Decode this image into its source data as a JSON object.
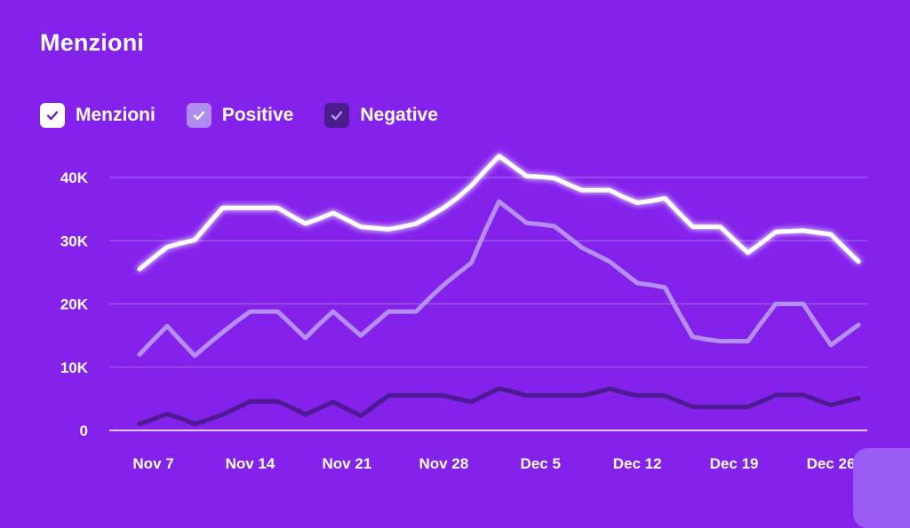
{
  "title": "Menzioni",
  "legend": [
    {
      "label": "Menzioni",
      "box_color": "#ffffff",
      "check_color": "#6a20c9"
    },
    {
      "label": "Positive",
      "box_color": "#b18cf0",
      "check_color": "#ffffff"
    },
    {
      "label": "Negative",
      "box_color": "#4a1c8e",
      "check_color": "#b79ce8"
    }
  ],
  "colors": {
    "background": "#8422ec",
    "menzioni": "#ffffff",
    "positive": "#b58ff2",
    "negative": "#4d1a91",
    "gridline": "#a46cf2"
  },
  "chart_data": {
    "type": "line",
    "xlabel": "",
    "ylabel": "",
    "ylim": [
      0,
      40000
    ],
    "y_ticks": [
      0,
      10000,
      20000,
      30000,
      40000
    ],
    "y_tick_labels": [
      "0",
      "10K",
      "20K",
      "30K",
      "40K"
    ],
    "x_tick_labels": [
      "Nov 7",
      "Nov 14",
      "Nov 21",
      "Nov 28",
      "Dec 5",
      "Dec 12",
      "Dec 19",
      "Dec 26"
    ],
    "grid": true,
    "legend_position": "top-left",
    "x": [
      "Nov 6",
      "Nov 7",
      "Nov 8",
      "Nov 9",
      "Nov 10",
      "Nov 11",
      "Nov 12",
      "Nov 13",
      "Nov 14",
      "Nov 15",
      "Nov 16",
      "Nov 17",
      "Nov 18",
      "Nov 19",
      "Nov 20",
      "Nov 21",
      "Nov 22",
      "Nov 23",
      "Nov 24",
      "Nov 25",
      "Nov 26",
      "Nov 27",
      "Nov 28",
      "Nov 29",
      "Nov 30",
      "Dec 1",
      "Dec 2",
      "Dec 3",
      "Dec 4",
      "Dec 5",
      "Dec 6",
      "Dec 7",
      "Dec 8",
      "Dec 9",
      "Dec 10",
      "Dec 11",
      "Dec 12",
      "Dec 13",
      "Dec 14",
      "Dec 15",
      "Dec 16",
      "Dec 17",
      "Dec 18",
      "Dec 19",
      "Dec 20",
      "Dec 21",
      "Dec 22",
      "Dec 23",
      "Dec 24",
      "Dec 25",
      "Dec 26",
      "Dec 27",
      "Dec 28"
    ],
    "series": [
      {
        "name": "Menzioni",
        "values": [
          25500,
          27300,
          29000,
          29600,
          30100,
          32700,
          35200,
          35200,
          35200,
          35200,
          35200,
          33900,
          32700,
          33500,
          34400,
          33300,
          32200,
          32000,
          31800,
          32200,
          32700,
          33900,
          35200,
          36800,
          38700,
          41100,
          43400,
          41800,
          40200,
          40100,
          39900,
          38900,
          38000,
          38000,
          38000,
          36900,
          36000,
          36300,
          36700,
          34400,
          32200,
          32200,
          32200,
          30100,
          28100,
          29700,
          31400,
          31500,
          31600,
          31300,
          31000,
          28800,
          26700
        ]
      },
      {
        "name": "Positive",
        "values": [
          12000,
          14300,
          16500,
          14100,
          11800,
          13700,
          15500,
          17200,
          18800,
          18800,
          18800,
          16700,
          14600,
          16800,
          18800,
          16900,
          15000,
          16900,
          18800,
          18800,
          18800,
          21000,
          23000,
          24800,
          26500,
          31600,
          36200,
          34500,
          32800,
          32600,
          32300,
          30600,
          28900,
          27800,
          26700,
          25000,
          23300,
          23000,
          22600,
          18600,
          14800,
          14400,
          14100,
          14100,
          14100,
          17100,
          20000,
          20000,
          20000,
          16700,
          13500,
          15100,
          16700
        ]
      },
      {
        "name": "Negative",
        "values": [
          1000,
          1800,
          2600,
          1900,
          1000,
          1700,
          2500,
          3500,
          4600,
          4600,
          4600,
          3600,
          2500,
          3500,
          4500,
          3400,
          2300,
          3900,
          5500,
          5500,
          5500,
          5500,
          5500,
          5000,
          4500,
          5600,
          6600,
          6100,
          5500,
          5500,
          5500,
          5500,
          5500,
          6000,
          6600,
          6000,
          5500,
          5500,
          5500,
          4600,
          3700,
          3700,
          3700,
          3700,
          3700,
          4600,
          5600,
          5600,
          5600,
          4800,
          4000,
          4600,
          5100
        ]
      }
    ]
  }
}
